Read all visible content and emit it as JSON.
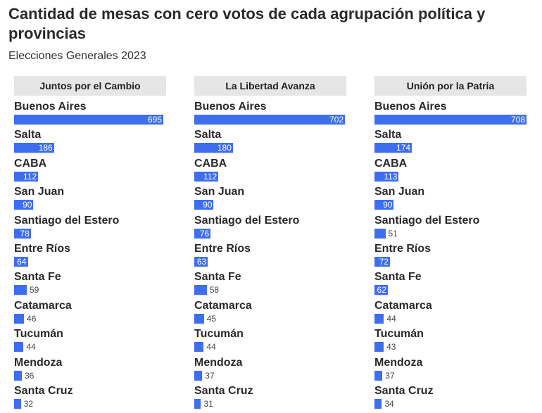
{
  "title": "Cantidad de mesas con cero votos de cada agrupación política y provincias",
  "subtitle": "Elecciones Generales 2023",
  "chart_data": {
    "type": "bar",
    "orientation": "horizontal",
    "title": "Cantidad de mesas con cero votos de cada agrupación política y provincias",
    "subtitle": "Elecciones Generales 2023",
    "bar_color": "#3d6ef0",
    "xlim": [
      0,
      708
    ],
    "categories": [
      "Buenos Aires",
      "Salta",
      "CABA",
      "San Juan",
      "Santiago del Estero",
      "Entre Ríos",
      "Santa Fe",
      "Catamarca",
      "Tucumán",
      "Mendoza",
      "Santa Cruz"
    ],
    "series": [
      {
        "name": "Juntos por el Cambio",
        "values": [
          695,
          186,
          112,
          90,
          78,
          64,
          59,
          46,
          44,
          36,
          32
        ]
      },
      {
        "name": "La Libertad Avanza",
        "values": [
          702,
          180,
          112,
          90,
          76,
          63,
          58,
          45,
          44,
          37,
          31
        ]
      },
      {
        "name": "Unión por la Patria",
        "values": [
          708,
          174,
          113,
          90,
          51,
          72,
          62,
          44,
          43,
          37,
          34
        ]
      }
    ]
  }
}
